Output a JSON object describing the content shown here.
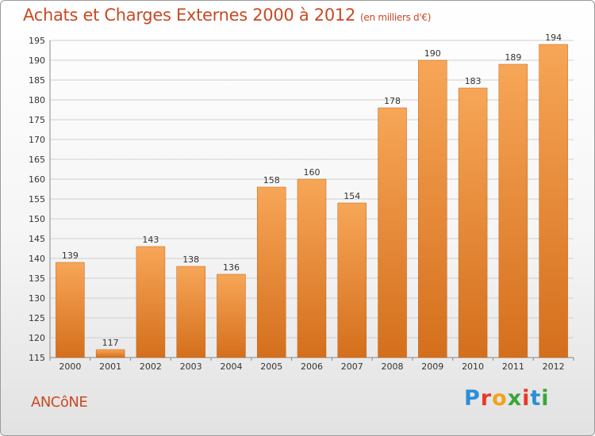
{
  "header": {
    "title": "Achats et Charges Externes 2000 à 2012",
    "subtitle": "(en milliers d'€)"
  },
  "footer": {
    "commune": "ANCôNE",
    "logo_letters": [
      "P",
      "r",
      "o",
      "x",
      "i",
      "t",
      "i"
    ],
    "logo_colors": [
      "#2a8fd6",
      "#e8392c",
      "#f2a31b",
      "#3aa63a",
      "#e8392c",
      "#2a8fd6",
      "#3aa63a"
    ]
  },
  "colors": {
    "bar_top": "#f7a657",
    "bar_bottom": "#d46f1c",
    "grid": "#cfcfcf",
    "title": "#c84a24"
  },
  "chart_data": {
    "type": "bar",
    "categories": [
      "2000",
      "2001",
      "2002",
      "2003",
      "2004",
      "2005",
      "2006",
      "2007",
      "2008",
      "2009",
      "2010",
      "2011",
      "2012"
    ],
    "values": [
      139,
      117,
      143,
      138,
      136,
      158,
      160,
      154,
      178,
      190,
      183,
      189,
      194
    ],
    "ylim": [
      115,
      195
    ],
    "yticks": [
      115,
      120,
      125,
      130,
      135,
      140,
      145,
      150,
      155,
      160,
      165,
      170,
      175,
      180,
      185,
      190,
      195
    ],
    "grid": true
  }
}
